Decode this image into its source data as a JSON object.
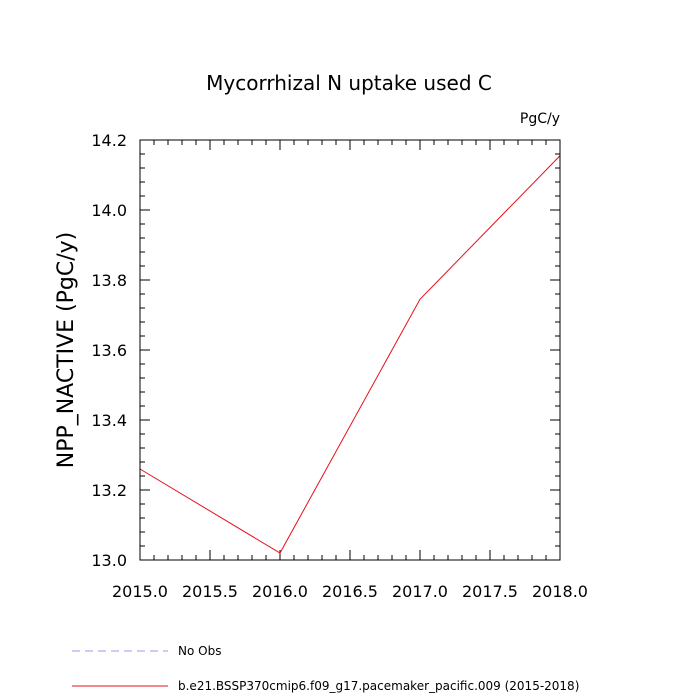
{
  "chart_data": {
    "type": "line",
    "title": "Mycorrhizal N uptake used C",
    "units_label": "PgC/y",
    "ylabel": "NPP_NACTIVE  (PgC/y)",
    "xlabel": "",
    "xlim": [
      2015.0,
      2018.0
    ],
    "ylim": [
      13.0,
      14.2
    ],
    "x_ticks": [
      "2015.0",
      "2015.5",
      "2016.0",
      "2016.5",
      "2017.0",
      "2017.5",
      "2018.0"
    ],
    "y_ticks": [
      "13.0",
      "13.2",
      "13.4",
      "13.6",
      "13.8",
      "14.0",
      "14.2"
    ],
    "grid": false,
    "legend_position": "bottom-left",
    "series": [
      {
        "name": "No Obs",
        "color": "#9a9af0",
        "style": "dashed",
        "x": [],
        "y": []
      },
      {
        "name": "b.e21.BSSP370cmip6.f09_g17.pacemaker_pacific.009 (2015-2018)",
        "color": "#e8101a",
        "style": "solid",
        "x": [
          2015,
          2016,
          2017,
          2018
        ],
        "y": [
          13.26,
          13.02,
          13.745,
          14.155
        ]
      }
    ]
  }
}
